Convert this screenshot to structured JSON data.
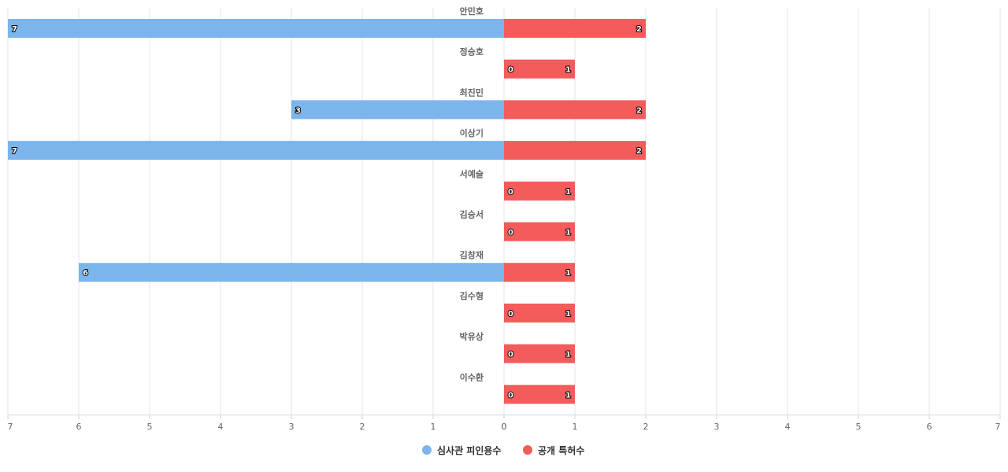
{
  "chart_data": {
    "type": "bar",
    "orientation": "horizontal-diverging",
    "categories": [
      "안민호",
      "정승호",
      "최진민",
      "이상기",
      "서예슬",
      "김승서",
      "김창재",
      "김수형",
      "박유상",
      "이수환"
    ],
    "series": [
      {
        "name": "심사관 피인용수",
        "values": [
          7,
          0,
          3,
          7,
          0,
          0,
          6,
          0,
          0,
          0
        ],
        "color": "#7cb5ec",
        "direction": "left"
      },
      {
        "name": "공개 특허수",
        "values": [
          2,
          1,
          2,
          2,
          1,
          1,
          1,
          1,
          1,
          1
        ],
        "color": "#f45b5b",
        "direction": "right"
      }
    ],
    "left_axis": {
      "min": 0,
      "max": 7,
      "ticks": [
        7,
        6,
        5,
        4,
        3,
        2,
        1,
        0
      ]
    },
    "right_axis": {
      "min": 0,
      "max": 7,
      "ticks": [
        0,
        1,
        2,
        3,
        4,
        5,
        6,
        7
      ]
    },
    "grid": true,
    "legend_position": "bottom-center",
    "data_labels": true
  }
}
